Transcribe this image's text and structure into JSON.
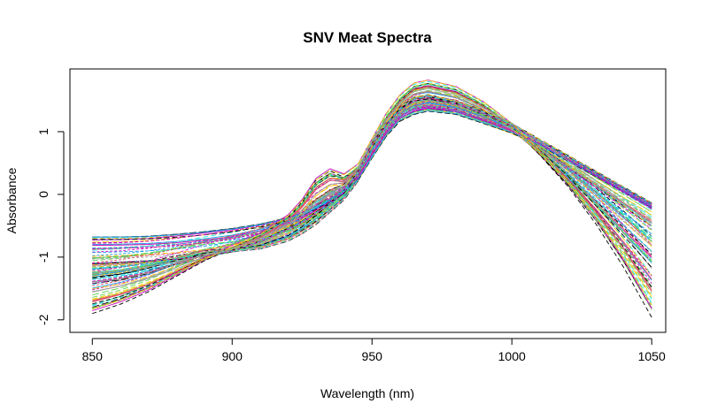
{
  "chart_data": {
    "type": "line",
    "title": "SNV Meat Spectra",
    "xlabel": "Wavelength (nm)",
    "ylabel": "Absorbance",
    "xlim": [
      842,
      1055
    ],
    "ylim": [
      -2.2,
      2.0
    ],
    "x_ticks": [
      850,
      900,
      950,
      1000,
      1050
    ],
    "y_ticks": [
      -2,
      -1,
      0,
      1
    ],
    "x_tick_labels": [
      "850",
      "900",
      "950",
      "1000",
      "1050"
    ],
    "y_tick_labels": [
      "-2",
      "-1",
      "0",
      "1"
    ],
    "grid": false,
    "legend": "none",
    "line_style": "dashed",
    "series_count": 120,
    "x": [
      850,
      860,
      870,
      880,
      890,
      900,
      910,
      920,
      925,
      930,
      935,
      940,
      945,
      950,
      955,
      960,
      965,
      970,
      980,
      990,
      1000,
      1010,
      1020,
      1030,
      1040,
      1050
    ],
    "series_summary": [
      {
        "values": [
          -1.1,
          -1.08,
          -1.06,
          -1.03,
          -0.98,
          -0.9,
          -0.75,
          -0.55,
          -0.44,
          -0.3,
          -0.15,
          0.05,
          0.35,
          0.8,
          1.1,
          1.35,
          1.5,
          1.55,
          1.45,
          1.3,
          1.1,
          0.85,
          0.6,
          0.35,
          0.1,
          -0.15
        ]
      },
      {
        "values": [
          -1.4,
          -1.35,
          -1.25,
          -1.1,
          -0.95,
          -0.85,
          -0.7,
          -0.45,
          -0.3,
          -0.1,
          0.05,
          0.15,
          0.35,
          0.75,
          1.1,
          1.35,
          1.5,
          1.52,
          1.45,
          1.3,
          1.05,
          0.75,
          0.45,
          0.15,
          -0.15,
          -0.45
        ]
      },
      {
        "values": [
          -1.9,
          -1.75,
          -1.55,
          -1.3,
          -1.05,
          -0.85,
          -0.65,
          -0.35,
          -0.1,
          0.25,
          0.4,
          0.3,
          0.45,
          0.85,
          1.25,
          1.55,
          1.75,
          1.8,
          1.7,
          1.45,
          1.1,
          0.65,
          0.15,
          -0.45,
          -1.15,
          -1.95
        ]
      },
      {
        "values": [
          -0.68,
          -0.68,
          -0.67,
          -0.64,
          -0.6,
          -0.55,
          -0.48,
          -0.38,
          -0.3,
          -0.2,
          -0.08,
          0.05,
          0.25,
          0.6,
          0.95,
          1.2,
          1.3,
          1.35,
          1.3,
          1.15,
          1.0,
          0.8,
          0.55,
          0.3,
          0.05,
          -0.2
        ]
      },
      {
        "values": [
          -1.25,
          -1.2,
          -1.12,
          -1.02,
          -0.93,
          -0.9,
          -0.85,
          -0.72,
          -0.6,
          -0.45,
          -0.25,
          -0.05,
          0.25,
          0.7,
          1.05,
          1.3,
          1.42,
          1.45,
          1.38,
          1.22,
          1.05,
          0.7,
          0.3,
          -0.15,
          -0.6,
          -1.05
        ]
      }
    ],
    "colors": [
      "#000000",
      "#DF536B",
      "#61D04F",
      "#2297E6",
      "#28E2E5",
      "#CD0BBC",
      "#F5C710",
      "#9E9E9E"
    ]
  }
}
